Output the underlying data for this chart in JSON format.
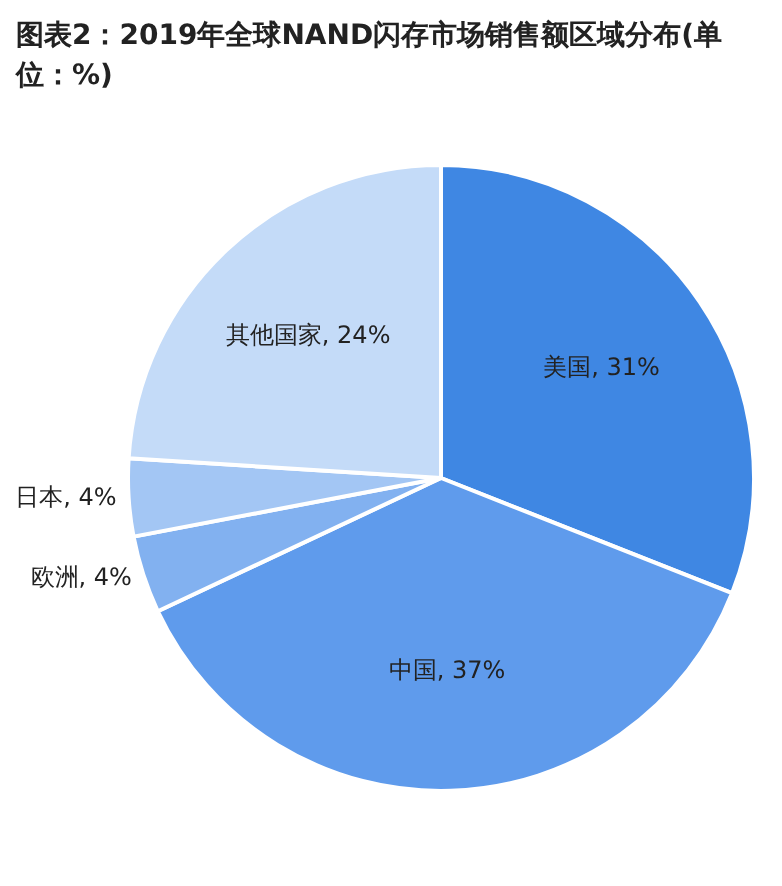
{
  "chart_data": {
    "type": "pie",
    "title": "图表2：2019年全球NAND闪存市场销售额区域分布(单位：%)",
    "categories": [
      "美国",
      "中国",
      "欧洲",
      "日本",
      "其他国家"
    ],
    "values": [
      31,
      37,
      4,
      4,
      24
    ],
    "value_labels": [
      "31%",
      "37%",
      "4%",
      "4%",
      "24%"
    ],
    "colors": [
      "#3f87e3",
      "#5f9bec",
      "#82b1f0",
      "#a3c6f4",
      "#c4dbf8"
    ],
    "legend": false
  }
}
